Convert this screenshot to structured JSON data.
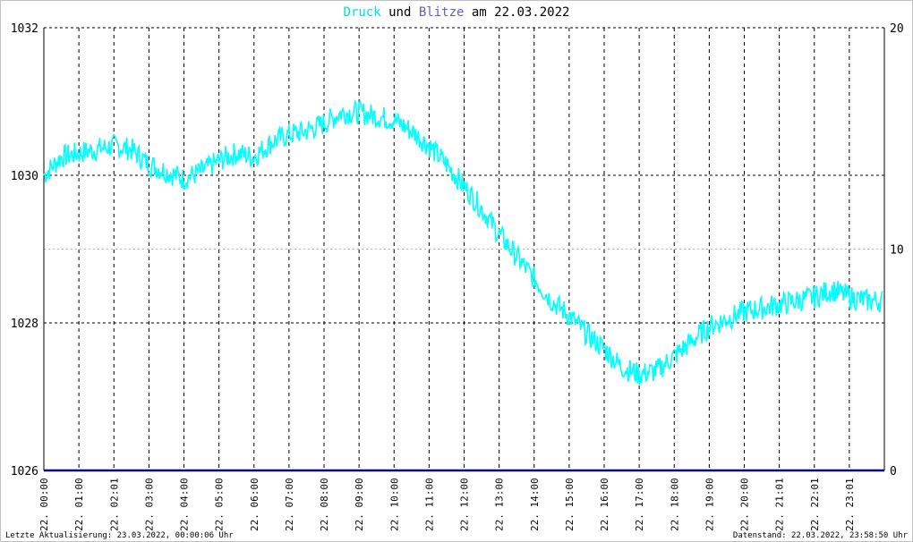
{
  "title": {
    "part1": "Druck",
    "part2": " und ",
    "part3": "Blitze",
    "part4": " am 22.03.2022"
  },
  "colors": {
    "druck": "#00ffff",
    "blitze": "#6060c0",
    "title_text": "#000000",
    "grid": "#000000",
    "baseline": "#000080"
  },
  "footer": {
    "left": "Letzte Aktualisierung: 23.03.2022, 00:00:06 Uhr",
    "right": "Datenstand: 22.03.2022, 23:58:50 Uhr"
  },
  "chart_data": {
    "type": "line",
    "title": "Druck und Blitze am 22.03.2022",
    "y_left": {
      "ylim": [
        1026,
        1032
      ],
      "ticks": [
        "1026",
        "1028",
        "1030",
        "1032"
      ]
    },
    "y_right": {
      "ylim": [
        0,
        20
      ],
      "ticks": [
        "0",
        "10",
        "20"
      ]
    },
    "x_tick_labels": [
      "22. 00:00",
      "22. 01:00",
      "22. 02:01",
      "22. 03:00",
      "22. 04:00",
      "22. 05:00",
      "22. 06:00",
      "22. 07:00",
      "22. 08:00",
      "22. 09:00",
      "22. 10:00",
      "22. 11:00",
      "22. 12:00",
      "22. 13:00",
      "22. 14:00",
      "22. 15:00",
      "22. 16:00",
      "22. 17:00",
      "22. 18:00",
      "22. 19:00",
      "22. 20:00",
      "22. 21:01",
      "22. 22:01",
      "22. 23:01"
    ],
    "grid": true,
    "series": [
      {
        "name": "Druck",
        "axis": "left",
        "x_hours": [
          0,
          0.5,
          1,
          1.5,
          2,
          2.5,
          3,
          3.5,
          4,
          4.5,
          5,
          5.5,
          6,
          6.5,
          7,
          7.5,
          8,
          8.5,
          9,
          9.5,
          10,
          10.5,
          11,
          11.5,
          12,
          12.5,
          13,
          13.5,
          14,
          14.5,
          15,
          15.5,
          16,
          16.5,
          17,
          17.5,
          18,
          18.5,
          19,
          19.5,
          20,
          20.5,
          21,
          21.5,
          22,
          22.5,
          23,
          23.5,
          23.95
        ],
        "values": [
          1030.0,
          1030.25,
          1030.3,
          1030.35,
          1030.4,
          1030.35,
          1030.15,
          1030.05,
          1029.95,
          1030.05,
          1030.2,
          1030.3,
          1030.25,
          1030.45,
          1030.55,
          1030.6,
          1030.7,
          1030.85,
          1030.85,
          1030.8,
          1030.75,
          1030.6,
          1030.4,
          1030.15,
          1029.85,
          1029.55,
          1029.2,
          1028.9,
          1028.6,
          1028.3,
          1028.1,
          1027.85,
          1027.65,
          1027.4,
          1027.3,
          1027.35,
          1027.55,
          1027.75,
          1027.95,
          1028.05,
          1028.15,
          1028.2,
          1028.25,
          1028.3,
          1028.35,
          1028.45,
          1028.35,
          1028.3,
          1028.3
        ]
      },
      {
        "name": "Blitze",
        "axis": "right",
        "x_hours": [
          0,
          24
        ],
        "values": [
          0,
          0
        ]
      }
    ]
  }
}
